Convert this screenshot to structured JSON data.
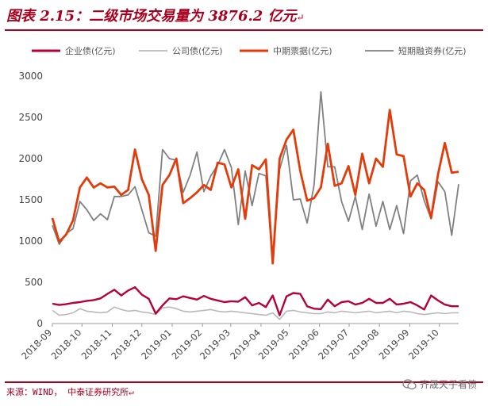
{
  "header": {
    "title": "图表 2.15：二级市场交易量为 3876.2 亿元",
    "paragraph_mark": "↵"
  },
  "footer": {
    "source": "来源：WIND， 中泰证券研究所↵",
    "watermark": "齐晟天子看债"
  },
  "colors": {
    "brand": "#a8001e",
    "enterprise": "#b5003a",
    "corporate": "#b8b8b8",
    "mtn": "#e33c0a",
    "cp": "#808080"
  },
  "chart_data": {
    "type": "line",
    "title": "",
    "xlabel": "",
    "ylabel": "",
    "ylim": [
      0,
      3000
    ],
    "yticks": [
      0,
      500,
      1000,
      1500,
      2000,
      2500,
      3000
    ],
    "xticks": [
      "2018-09",
      "2018-10",
      "2018-11",
      "2018-12",
      "2019-01",
      "2019-02",
      "2019-03",
      "2019-04",
      "2019-05",
      "2019-06",
      "2019-07",
      "2019-08",
      "2019-09",
      "2019-10"
    ],
    "xtick_positions": [
      0,
      4.3,
      8.7,
      13,
      17.4,
      21.8,
      25.9,
      30.3,
      34.4,
      38.8,
      43.1,
      47.5,
      51.9,
      56.2
    ],
    "x_count": 60,
    "grid": false,
    "legend_position": "top",
    "series": [
      {
        "name": "企业债(亿元)",
        "color_key": "enterprise",
        "values": [
          240,
          225,
          235,
          250,
          260,
          275,
          285,
          305,
          360,
          410,
          340,
          400,
          440,
          350,
          300,
          120,
          220,
          305,
          295,
          330,
          310,
          290,
          335,
          300,
          280,
          260,
          270,
          265,
          320,
          220,
          250,
          200,
          340,
          100,
          330,
          370,
          360,
          210,
          180,
          175,
          290,
          210,
          260,
          270,
          230,
          250,
          300,
          250,
          250,
          300,
          230,
          240,
          260,
          220,
          170,
          340,
          280,
          230,
          210,
          210
        ]
      },
      {
        "name": "公司债(亿元)",
        "color_key": "corporate",
        "values": [
          160,
          100,
          110,
          130,
          180,
          150,
          140,
          130,
          140,
          200,
          170,
          150,
          160,
          140,
          130,
          110,
          190,
          200,
          180,
          150,
          140,
          150,
          160,
          170,
          150,
          140,
          150,
          140,
          130,
          120,
          110,
          100,
          130,
          50,
          150,
          160,
          140,
          130,
          120,
          120,
          140,
          130,
          150,
          140,
          130,
          140,
          150,
          130,
          140,
          150,
          130,
          150,
          140,
          120,
          110,
          120,
          130,
          120,
          130,
          130
        ]
      },
      {
        "name": "中期票据(亿元)",
        "color_key": "mtn",
        "values": [
          1280,
          990,
          1080,
          1250,
          1650,
          1770,
          1650,
          1700,
          1650,
          1660,
          1560,
          1620,
          2110,
          1750,
          1560,
          880,
          1680,
          1800,
          2000,
          1460,
          1520,
          1590,
          1680,
          1620,
          1950,
          1930,
          1650,
          1870,
          1270,
          1920,
          1870,
          1990,
          730,
          2000,
          2230,
          2350,
          1850,
          1490,
          1520,
          1650,
          2180,
          1670,
          1700,
          1910,
          1560,
          2060,
          1700,
          2000,
          1900,
          2590,
          2050,
          2030,
          1540,
          1700,
          1620,
          1280,
          1810,
          2190,
          1830,
          1840
        ]
      },
      {
        "name": "短期融资券(亿元)",
        "color_key": "cp",
        "values": [
          1190,
          960,
          1090,
          1150,
          1480,
          1380,
          1250,
          1330,
          1260,
          1540,
          1540,
          1560,
          1660,
          1380,
          1100,
          1060,
          2110,
          2000,
          1980,
          1590,
          1800,
          2080,
          1600,
          1790,
          1920,
          2110,
          1890,
          1200,
          1850,
          1430,
          1820,
          1790,
          740,
          1870,
          2160,
          1500,
          1510,
          1220,
          1680,
          2810,
          1900,
          1900,
          1480,
          1240,
          1540,
          1140,
          1570,
          1180,
          1480,
          1140,
          1430,
          1090,
          1730,
          1800,
          1490,
          1270,
          1720,
          1600,
          1070,
          1690
        ]
      }
    ]
  }
}
